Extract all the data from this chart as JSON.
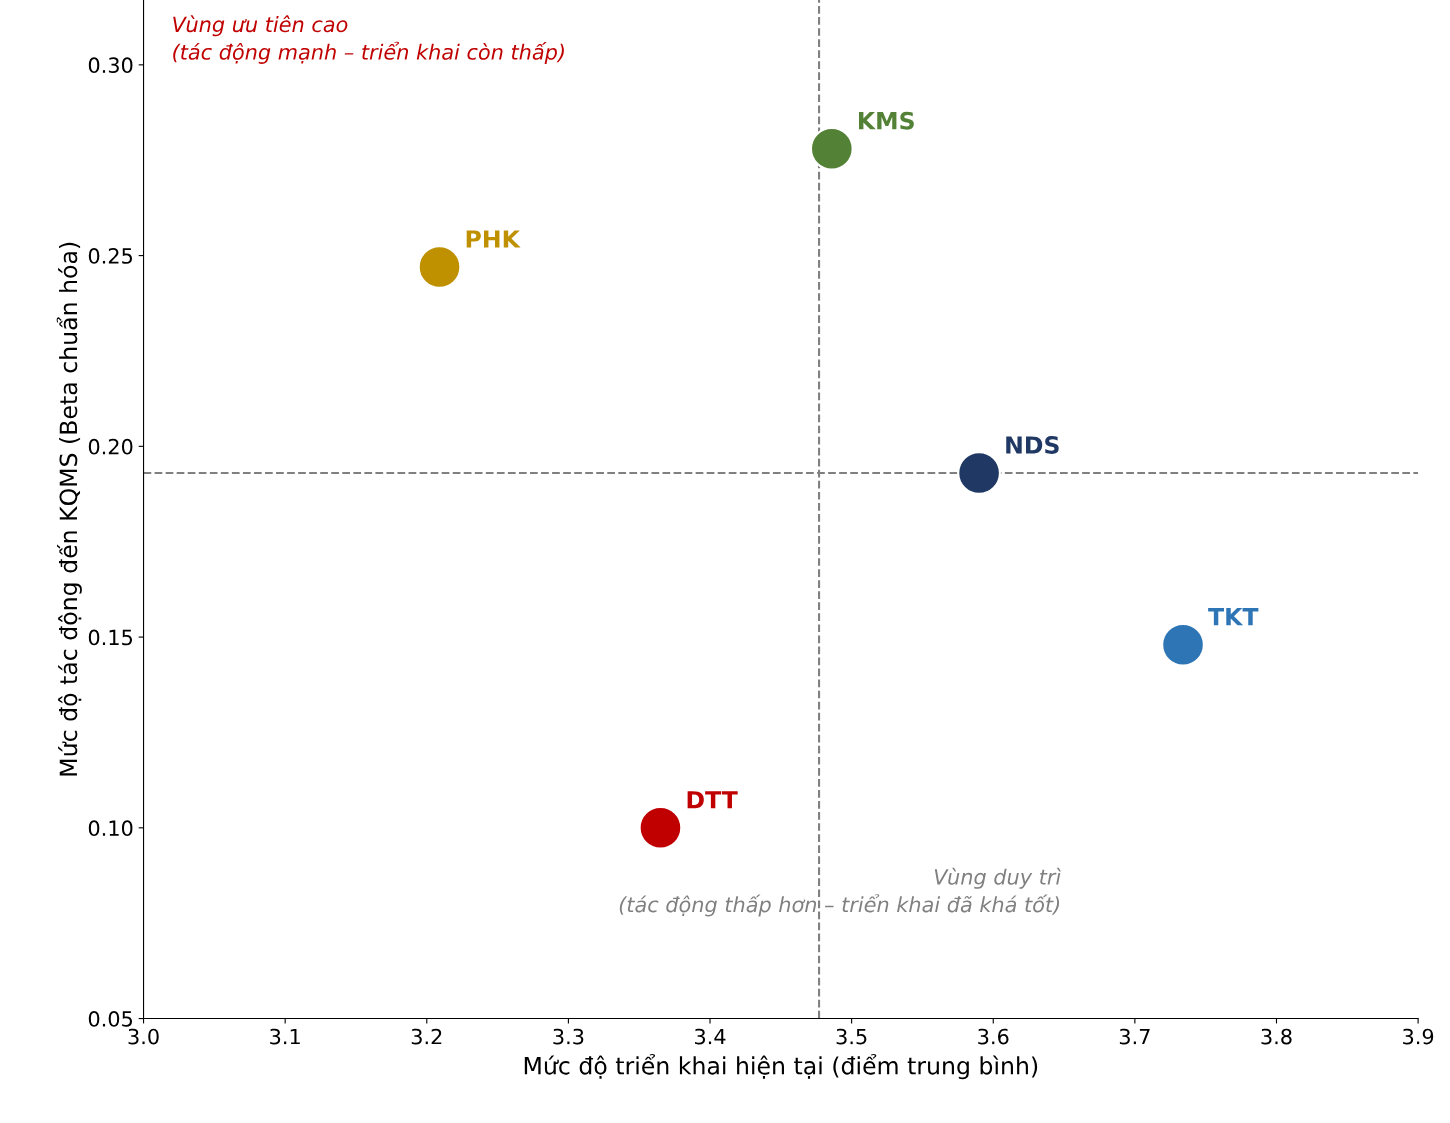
{
  "chart_data": {
    "type": "scatter",
    "xlabel": "Mức độ triển khai hiện tại (điểm trung bình)",
    "ylabel": "Mức độ tác động đến KQMS (Beta chuẩn hóa)",
    "series": [
      {
        "name": "KMS",
        "color": "#538135",
        "x": [
          3.486
        ],
        "values": [
          0.278
        ]
      },
      {
        "name": "PHK",
        "color": "#bf9000",
        "x": [
          3.209
        ],
        "values": [
          0.247
        ]
      },
      {
        "name": "NDS",
        "color": "#203864",
        "x": [
          3.59
        ],
        "values": [
          0.193
        ]
      },
      {
        "name": "TKT",
        "color": "#2e75b6",
        "x": [
          3.734
        ],
        "values": [
          0.148
        ]
      },
      {
        "name": "DTT",
        "color": "#c00000",
        "x": [
          3.365
        ],
        "values": [
          0.1
        ]
      }
    ],
    "ref_lines": [
      {
        "axis": "x",
        "value": 3.477,
        "color": "#808080",
        "line_style": "dashed"
      },
      {
        "axis": "y",
        "value": 0.193,
        "color": "#808080",
        "line_style": "dashed"
      }
    ],
    "annotations": [
      "Vùng ưu tiên cao\n(tác động mạnh – triển khai còn thấp)",
      "Vùng duy trì\n(tác động thấp hơn – triển khai đã khá tốt)"
    ],
    "xlim": [
      3.0,
      3.9
    ],
    "ylim": [
      0.05,
      0.317
    ],
    "xticks": [
      {
        "value": 3.0,
        "label": "3.0"
      },
      {
        "value": 3.1,
        "label": "3.1"
      },
      {
        "value": 3.2,
        "label": "3.2"
      },
      {
        "value": 3.3,
        "label": "3.3"
      },
      {
        "value": 3.4,
        "label": "3.4"
      },
      {
        "value": 3.5,
        "label": "3.5"
      },
      {
        "value": 3.6,
        "label": "3.6"
      },
      {
        "value": 3.7,
        "label": "3.7"
      },
      {
        "value": 3.8,
        "label": "3.8"
      },
      {
        "value": 3.9,
        "label": "3.9"
      }
    ],
    "yticks": [
      {
        "value": 0.05,
        "label": "0.05"
      },
      {
        "value": 0.1,
        "label": "0.10"
      },
      {
        "value": 0.15,
        "label": "0.15"
      },
      {
        "value": 0.2,
        "label": "0.20"
      },
      {
        "value": 0.25,
        "label": "0.25"
      },
      {
        "value": 0.3,
        "label": "0.30"
      }
    ],
    "grid": false,
    "legend": false,
    "marker": "circle"
  }
}
